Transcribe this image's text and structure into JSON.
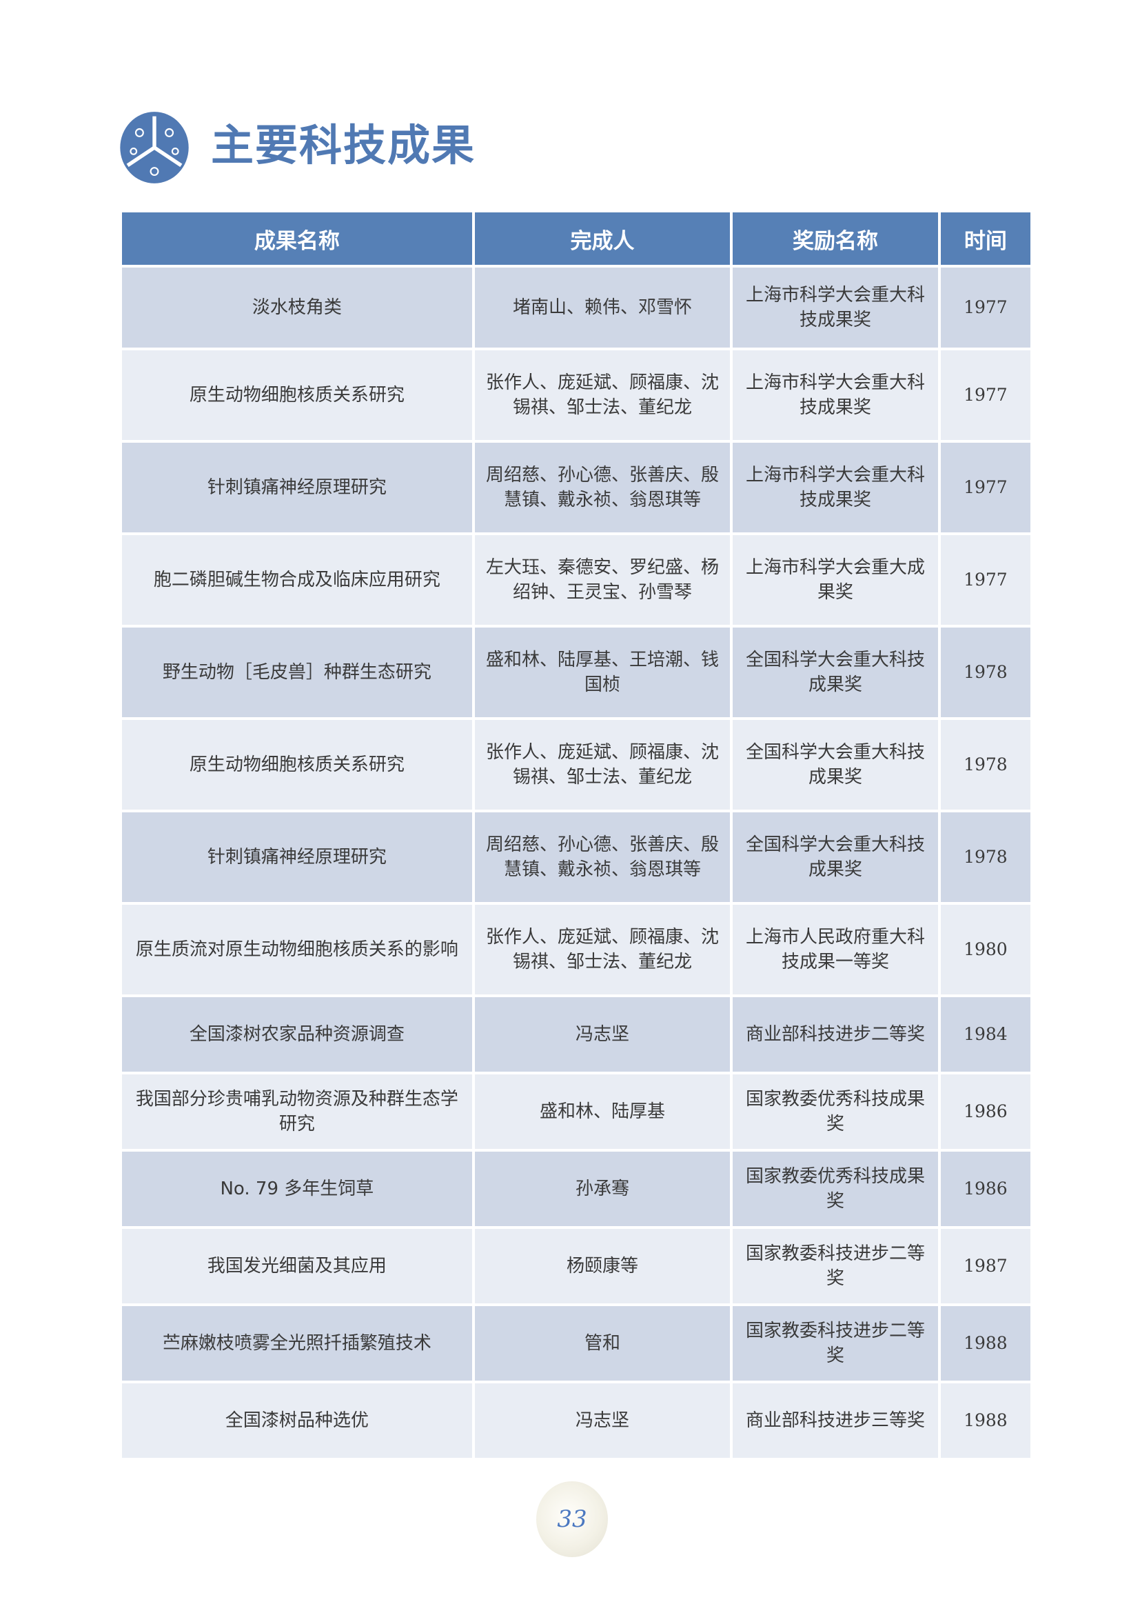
{
  "title": "主要科技成果",
  "logo_icon": "auspicious-cloud-emblem-icon",
  "colors": {
    "accent": "#5680b6",
    "row_dark": "#cfd7e6",
    "row_light": "#e9edf4"
  },
  "table": {
    "headers": [
      "成果名称",
      "完成人",
      "奖励名称",
      "时间"
    ],
    "rows": [
      {
        "name": "淡水枝角类",
        "people": "堵南山、赖伟、邓雪怀",
        "award": "上海市科学大会重大科技成果奖",
        "year": "1977"
      },
      {
        "name": "原生动物细胞核质关系研究",
        "people": "张作人、庞延斌、顾福康、沈锡祺、邹士法、董纪龙",
        "award": "上海市科学大会重大科技成果奖",
        "year": "1977"
      },
      {
        "name": "针刺镇痛神经原理研究",
        "people": "周绍慈、孙心德、张善庆、殷慧镇、戴永祯、翁恩琪等",
        "award": "上海市科学大会重大科技成果奖",
        "year": "1977"
      },
      {
        "name": "胞二磷胆碱生物合成及临床应用研究",
        "people": "左大珏、秦德安、罗纪盛、杨绍钟、王灵宝、孙雪琴",
        "award": "上海市科学大会重大成果奖",
        "year": "1977"
      },
      {
        "name": "野生动物［毛皮兽］种群生态研究",
        "people": "盛和林、陆厚基、王培潮、钱国桢",
        "award": "全国科学大会重大科技成果奖",
        "year": "1978"
      },
      {
        "name": "原生动物细胞核质关系研究",
        "people": "张作人、庞延斌、顾福康、沈锡祺、邹士法、董纪龙",
        "award": "全国科学大会重大科技成果奖",
        "year": "1978"
      },
      {
        "name": "针刺镇痛神经原理研究",
        "people": "周绍慈、孙心德、张善庆、殷慧镇、戴永祯、翁恩琪等",
        "award": "全国科学大会重大科技成果奖",
        "year": "1978"
      },
      {
        "name": "原生质流对原生动物细胞核质关系的影响",
        "people": "张作人、庞延斌、顾福康、沈锡祺、邹士法、董纪龙",
        "award": "上海市人民政府重大科技成果一等奖",
        "year": "1980"
      },
      {
        "name": "全国漆树农家品种资源调查",
        "people": "冯志坚",
        "award": "商业部科技进步二等奖",
        "year": "1984"
      },
      {
        "name": "我国部分珍贵哺乳动物资源及种群生态学研究",
        "people": "盛和林、陆厚基",
        "award": "国家教委优秀科技成果奖",
        "year": "1986"
      },
      {
        "name": "No. 79 多年生饲草",
        "people": "孙承骞",
        "award": "国家教委优秀科技成果奖",
        "year": "1986"
      },
      {
        "name": "我国发光细菌及其应用",
        "people": "杨颐康等",
        "award": "国家教委科技进步二等奖",
        "year": "1987"
      },
      {
        "name": "苎麻嫩枝喷雾全光照扦插繁殖技术",
        "people": "管和",
        "award": "国家教委科技进步二等奖",
        "year": "1988"
      },
      {
        "name": "全国漆树品种选优",
        "people": "冯志坚",
        "award": "商业部科技进步三等奖",
        "year": "1988"
      }
    ]
  },
  "page_number": "33"
}
